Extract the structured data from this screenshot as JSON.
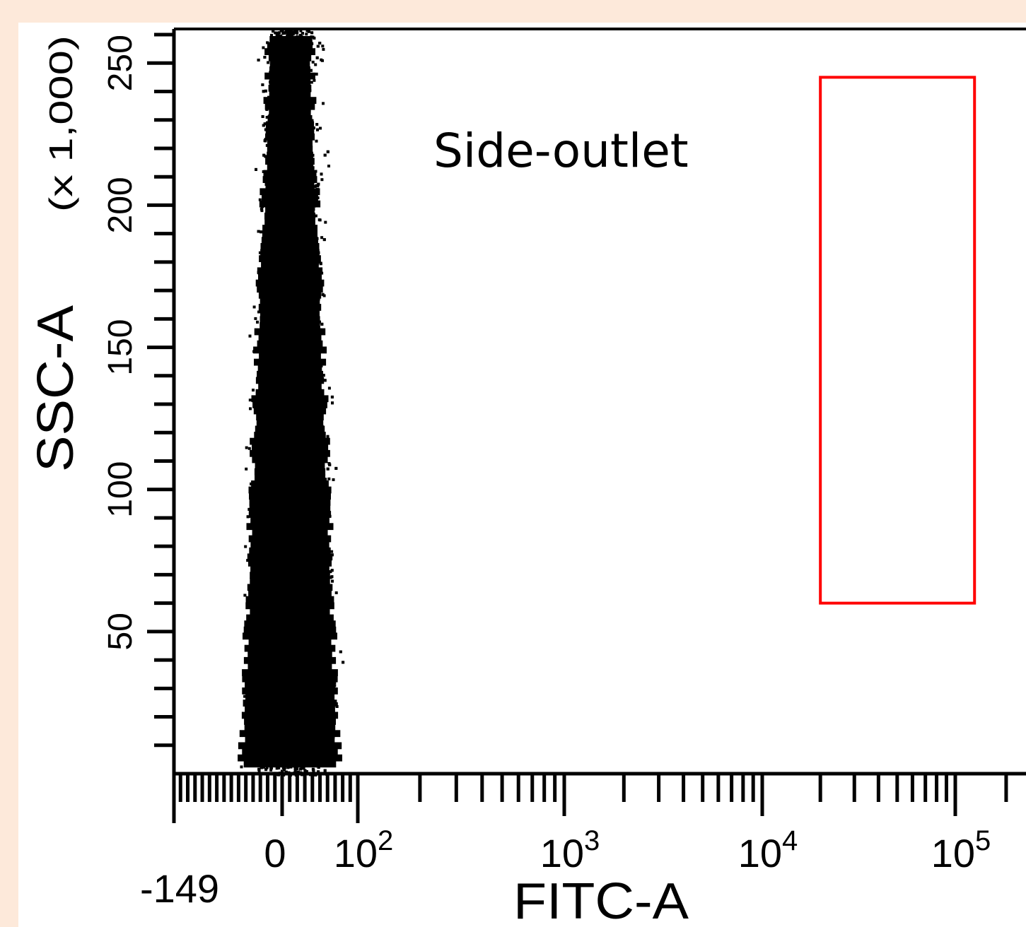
{
  "chart_data": {
    "type": "scatter",
    "title": "",
    "annotation": "Side-outlet",
    "xlabel": "FITC-A",
    "ylabel": "SSC-A",
    "yunit": "(x 1,000)",
    "x_scale": "biexponential",
    "x_tick_labels": [
      {
        "label": "-149",
        "value": -149
      },
      {
        "label": "0",
        "value": 0
      },
      {
        "label": "10",
        "exp": "2",
        "value": 100
      },
      {
        "label": "10",
        "exp": "3",
        "value": 1000
      },
      {
        "label": "10",
        "exp": "4",
        "value": 10000
      },
      {
        "label": "10",
        "exp": "5",
        "value": 100000
      }
    ],
    "y_ticks": [
      {
        "label": "50",
        "value": 50
      },
      {
        "label": "100",
        "value": 100
      },
      {
        "label": "150",
        "value": 150
      },
      {
        "label": "200",
        "value": 200
      },
      {
        "label": "250",
        "value": 250
      }
    ],
    "ylim": [
      0,
      262
    ],
    "population": {
      "description_free": true,
      "x_center": 0,
      "x_spread": [
        -60,
        60
      ],
      "y_range": [
        0,
        262
      ]
    },
    "gate": {
      "shape": "rectangle",
      "color": "#ff0000",
      "x_range": [
        20000,
        130000
      ],
      "y_range": [
        60,
        245
      ]
    },
    "colors": {
      "points": "#000000",
      "gate": "#ff0000",
      "background": "#fde9da"
    }
  }
}
